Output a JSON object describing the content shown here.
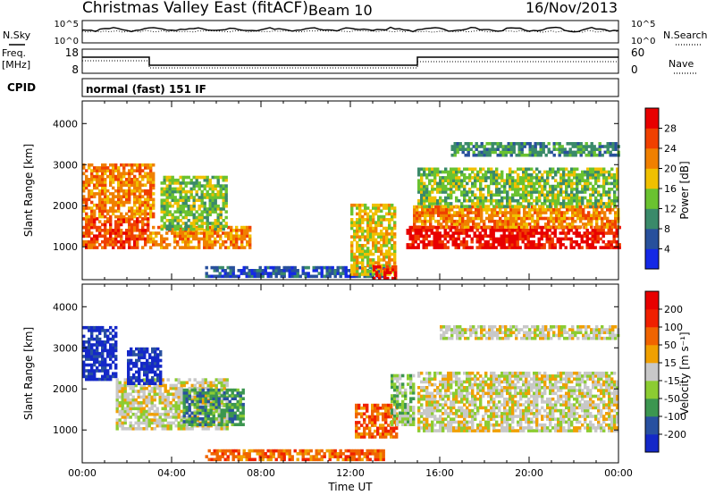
{
  "header": {
    "title": "Christmas Valley East (fitACF)",
    "beam": "Beam 10",
    "date": "16/Nov/2013"
  },
  "noise_panel": {
    "left_label": "N.Sky",
    "left_ticks": [
      "10^5",
      "10^0"
    ],
    "right_ticks": [
      "10^5",
      "10^0"
    ],
    "right_label": "N.Search"
  },
  "freq_panel": {
    "left_label_line1": "Freq.",
    "left_label_line2": "[MHz]",
    "left_ticks": [
      "18",
      "8"
    ],
    "right_ticks": [
      "60",
      "0"
    ],
    "right_label": "Nave"
  },
  "cpid": {
    "label": "CPID",
    "value": "normal (fast) 151 IF"
  },
  "chart_data": [
    {
      "type": "heatmap",
      "ylabel": "Slant Range [km]",
      "ylim": [
        200,
        4550
      ],
      "xlim": [
        0,
        24
      ],
      "yticks": [
        "1000",
        "2000",
        "3000",
        "4000"
      ],
      "colorbar": {
        "label": "Power [dB]",
        "ticks": [
          "4",
          "8",
          "12",
          "16",
          "20",
          "24",
          "28"
        ],
        "colors": [
          "#1428e6",
          "#28509c",
          "#3a8a6a",
          "#6ac230",
          "#f0c000",
          "#f08000",
          "#f04000",
          "#e80000"
        ]
      },
      "regions": [
        {
          "t0": 0.0,
          "t1": 3.0,
          "r0": 950,
          "r1": 1700,
          "level": 6
        },
        {
          "t0": 0.0,
          "t1": 3.2,
          "r0": 1700,
          "r1": 3000,
          "level": 5
        },
        {
          "t0": 3.0,
          "t1": 7.5,
          "r0": 950,
          "r1": 1500,
          "level": 5
        },
        {
          "t0": 3.5,
          "t1": 6.5,
          "r0": 1400,
          "r1": 2700,
          "level": 3
        },
        {
          "t0": 5.5,
          "t1": 13.5,
          "r0": 250,
          "r1": 500,
          "level": 1
        },
        {
          "t0": 12.0,
          "t1": 14.0,
          "r0": 300,
          "r1": 2000,
          "level": 4
        },
        {
          "t0": 13.0,
          "t1": 14.0,
          "r0": 200,
          "r1": 500,
          "level": 7
        },
        {
          "t0": 14.5,
          "t1": 24.0,
          "r0": 950,
          "r1": 1450,
          "level": 7
        },
        {
          "t0": 14.8,
          "t1": 24.0,
          "r0": 1450,
          "r1": 1950,
          "level": 5
        },
        {
          "t0": 15.0,
          "t1": 24.0,
          "r0": 1950,
          "r1": 2900,
          "level": 3
        },
        {
          "t0": 16.5,
          "t1": 24.0,
          "r0": 3200,
          "r1": 3550,
          "level": 2
        }
      ]
    },
    {
      "type": "heatmap",
      "ylabel": "Slant Range [km]",
      "xlabel": "Time UT",
      "ylim": [
        200,
        4550
      ],
      "xlim": [
        0,
        24
      ],
      "yticks": [
        "1000",
        "2000",
        "3000",
        "4000"
      ],
      "xticks": [
        "00:00",
        "04:00",
        "08:00",
        "12:00",
        "16:00",
        "20:00",
        "00:00"
      ],
      "colorbar": {
        "label": "Velocity [m s⁻¹]",
        "ticks": [
          "200",
          "100",
          "50",
          "15",
          "-15",
          "-50",
          "-100",
          "-200"
        ],
        "colors": [
          "#1428c8",
          "#2850a0",
          "#3c9650",
          "#8ccc32",
          "#c8c8c8",
          "#f0a000",
          "#f06400",
          "#f02000",
          "#e80000"
        ]
      },
      "regions": [
        {
          "t0": 0.0,
          "t1": 1.5,
          "r0": 2200,
          "r1": 3500,
          "level": 0
        },
        {
          "t0": 1.5,
          "t1": 6.5,
          "r0": 1000,
          "r1": 2200,
          "level": 4
        },
        {
          "t0": 2.0,
          "t1": 3.5,
          "r0": 2100,
          "r1": 3000,
          "level": 0
        },
        {
          "t0": 4.5,
          "t1": 7.2,
          "r0": 1100,
          "r1": 2000,
          "level": 2
        },
        {
          "t0": 5.5,
          "t1": 13.5,
          "r0": 250,
          "r1": 500,
          "level": 6
        },
        {
          "t0": 12.2,
          "t1": 14.0,
          "r0": 800,
          "r1": 1600,
          "level": 6
        },
        {
          "t0": 13.8,
          "t1": 14.8,
          "r0": 1100,
          "r1": 2300,
          "level": 3
        },
        {
          "t0": 15.0,
          "t1": 24.0,
          "r0": 950,
          "r1": 2400,
          "level": 4
        },
        {
          "t0": 16.0,
          "t1": 24.0,
          "r0": 3200,
          "r1": 3500,
          "level": 4
        }
      ]
    }
  ]
}
